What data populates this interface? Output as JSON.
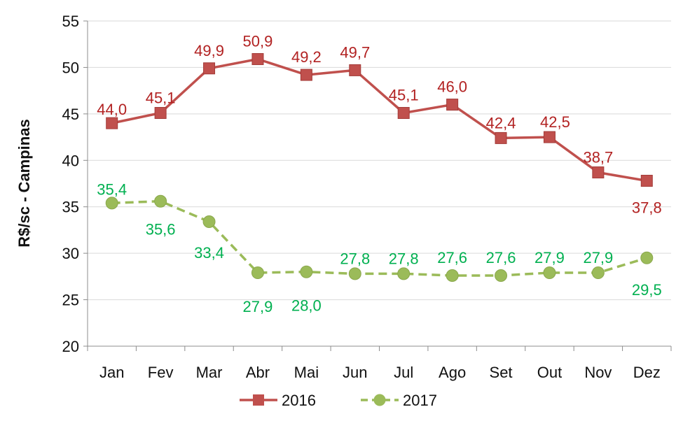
{
  "chart_data": {
    "type": "line",
    "title": "",
    "xlabel": "",
    "ylabel": "R$/sc - Campinas",
    "categories": [
      "Jan",
      "Fev",
      "Mar",
      "Abr",
      "Mai",
      "Jun",
      "Jul",
      "Ago",
      "Set",
      "Out",
      "Nov",
      "Dez"
    ],
    "ylim": [
      20,
      55
    ],
    "yticks": [
      "20",
      "25",
      "30",
      "35",
      "40",
      "45",
      "50",
      "55"
    ],
    "grid": true,
    "legend_position": "bottom",
    "series": [
      {
        "name": "2016",
        "values": [
          44.0,
          45.1,
          49.9,
          50.9,
          49.2,
          49.7,
          45.1,
          46.0,
          42.4,
          42.5,
          38.7,
          37.8
        ],
        "labels": [
          "44,0",
          "45,1",
          "49,9",
          "50,9",
          "49,2",
          "49,7",
          "45,1",
          "46,0",
          "42,4",
          "42,5",
          "38,7",
          "37,8"
        ],
        "color": "#c0504d",
        "label_color": "#b22222",
        "marker": "square",
        "line": "solid"
      },
      {
        "name": "2017",
        "values": [
          35.4,
          35.6,
          33.4,
          27.9,
          28.0,
          27.8,
          27.8,
          27.6,
          27.6,
          27.9,
          27.9,
          29.5
        ],
        "labels": [
          "35,4",
          "35,6",
          "33,4",
          "27,9",
          "28,0",
          "27,8",
          "27,8",
          "27,6",
          "27,6",
          "27,9",
          "27,9",
          "29,5"
        ],
        "color": "#9bbb59",
        "label_color": "#00b050",
        "marker": "circle",
        "line": "dashed"
      }
    ]
  }
}
